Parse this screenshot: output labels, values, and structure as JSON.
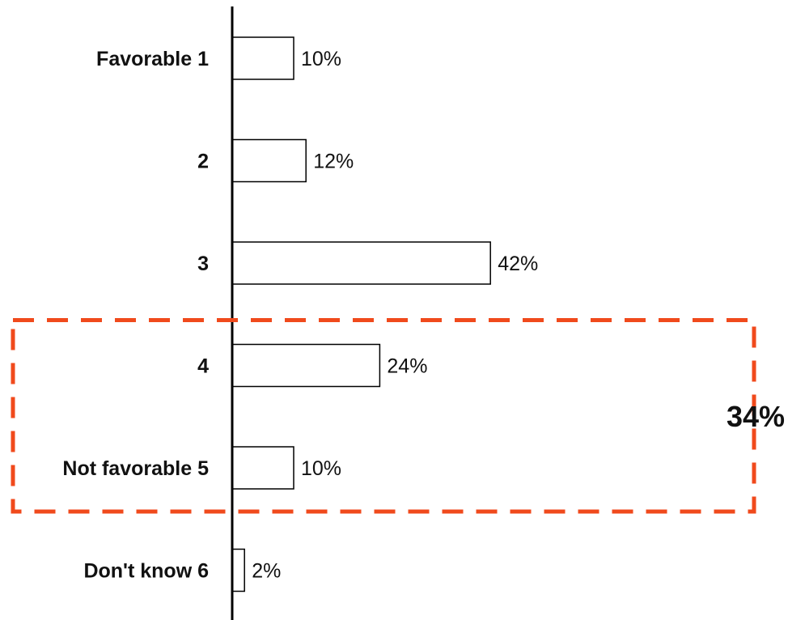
{
  "chart_data": {
    "type": "bar",
    "orientation": "horizontal",
    "categories": [
      "Favorable  1",
      "2",
      "3",
      "4",
      "Not favorable  5",
      "Don't know  6"
    ],
    "values": [
      10,
      12,
      42,
      24,
      10,
      2
    ],
    "value_labels": [
      "10%",
      "12%",
      "42%",
      "24%",
      "10%",
      "2%"
    ],
    "unit": "%",
    "xlim": [
      0,
      100
    ],
    "grid": false,
    "legend": "none",
    "annotation": {
      "label": "34%",
      "covers_categories": [
        "4",
        "Not favorable  5"
      ],
      "style": "dashed box",
      "color": "#f04a1c"
    },
    "bar_fill": "#ffffff",
    "bar_stroke": "#000000"
  }
}
